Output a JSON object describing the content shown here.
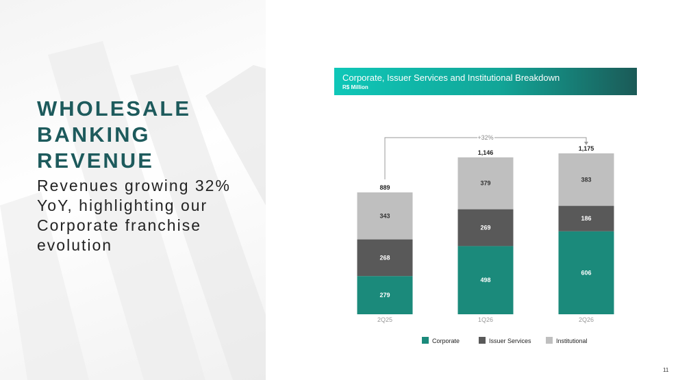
{
  "slide": {
    "title_lines": [
      "WHOLESALE",
      "BANKING",
      "REVENUE"
    ],
    "subtitle": "Revenues growing 32% YoY, highlighting our Corporate franchise evolution",
    "page_number": "11"
  },
  "chart_data": {
    "type": "stacked_bar",
    "title": "Corporate, Issuer Services and Institutional Breakdown",
    "subtitle": "R$ Million",
    "categories": [
      "2Q25",
      "1Q26",
      "2Q26"
    ],
    "series": [
      {
        "name": "Corporate",
        "color": "#1b8a7b",
        "values": [
          279,
          498,
          606
        ]
      },
      {
        "name": "Issuer Services",
        "color": "#595959",
        "values": [
          268,
          269,
          186
        ]
      },
      {
        "name": "Institutional",
        "color": "#bfbfbf",
        "values": [
          343,
          379,
          383
        ]
      }
    ],
    "totals": {
      "values": [
        889,
        1146,
        1175
      ],
      "value_labels": [
        "889",
        "1,146",
        "1,175"
      ]
    },
    "annotation": "+32%"
  }
}
